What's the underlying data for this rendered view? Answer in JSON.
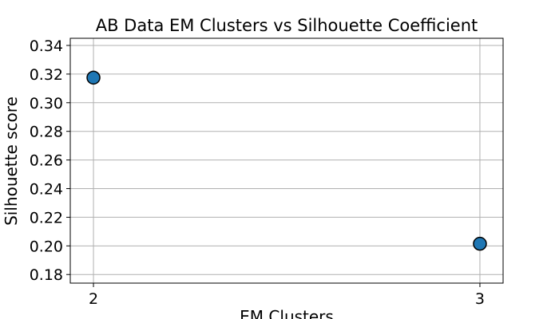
{
  "chart_data": {
    "type": "scatter",
    "title": "AB Data EM Clusters vs Silhouette Coefficient",
    "xlabel": "EM Clusters",
    "ylabel": "Silhouette score",
    "x": [
      2,
      3
    ],
    "y": [
      0.3175,
      0.2015
    ],
    "xlim": [
      1.94,
      3.06
    ],
    "ylim": [
      0.174,
      0.345
    ],
    "xticks": [
      2,
      3
    ],
    "xtick_labels": [
      "2",
      "3"
    ],
    "yticks": [
      0.18,
      0.2,
      0.22,
      0.24,
      0.26,
      0.28,
      0.3,
      0.32,
      0.34
    ],
    "ytick_labels": [
      "0.18",
      "0.20",
      "0.22",
      "0.24",
      "0.26",
      "0.28",
      "0.30",
      "0.32",
      "0.34"
    ],
    "grid": true,
    "marker_color": "#1f77b4",
    "marker_edge_color": "#000000"
  }
}
